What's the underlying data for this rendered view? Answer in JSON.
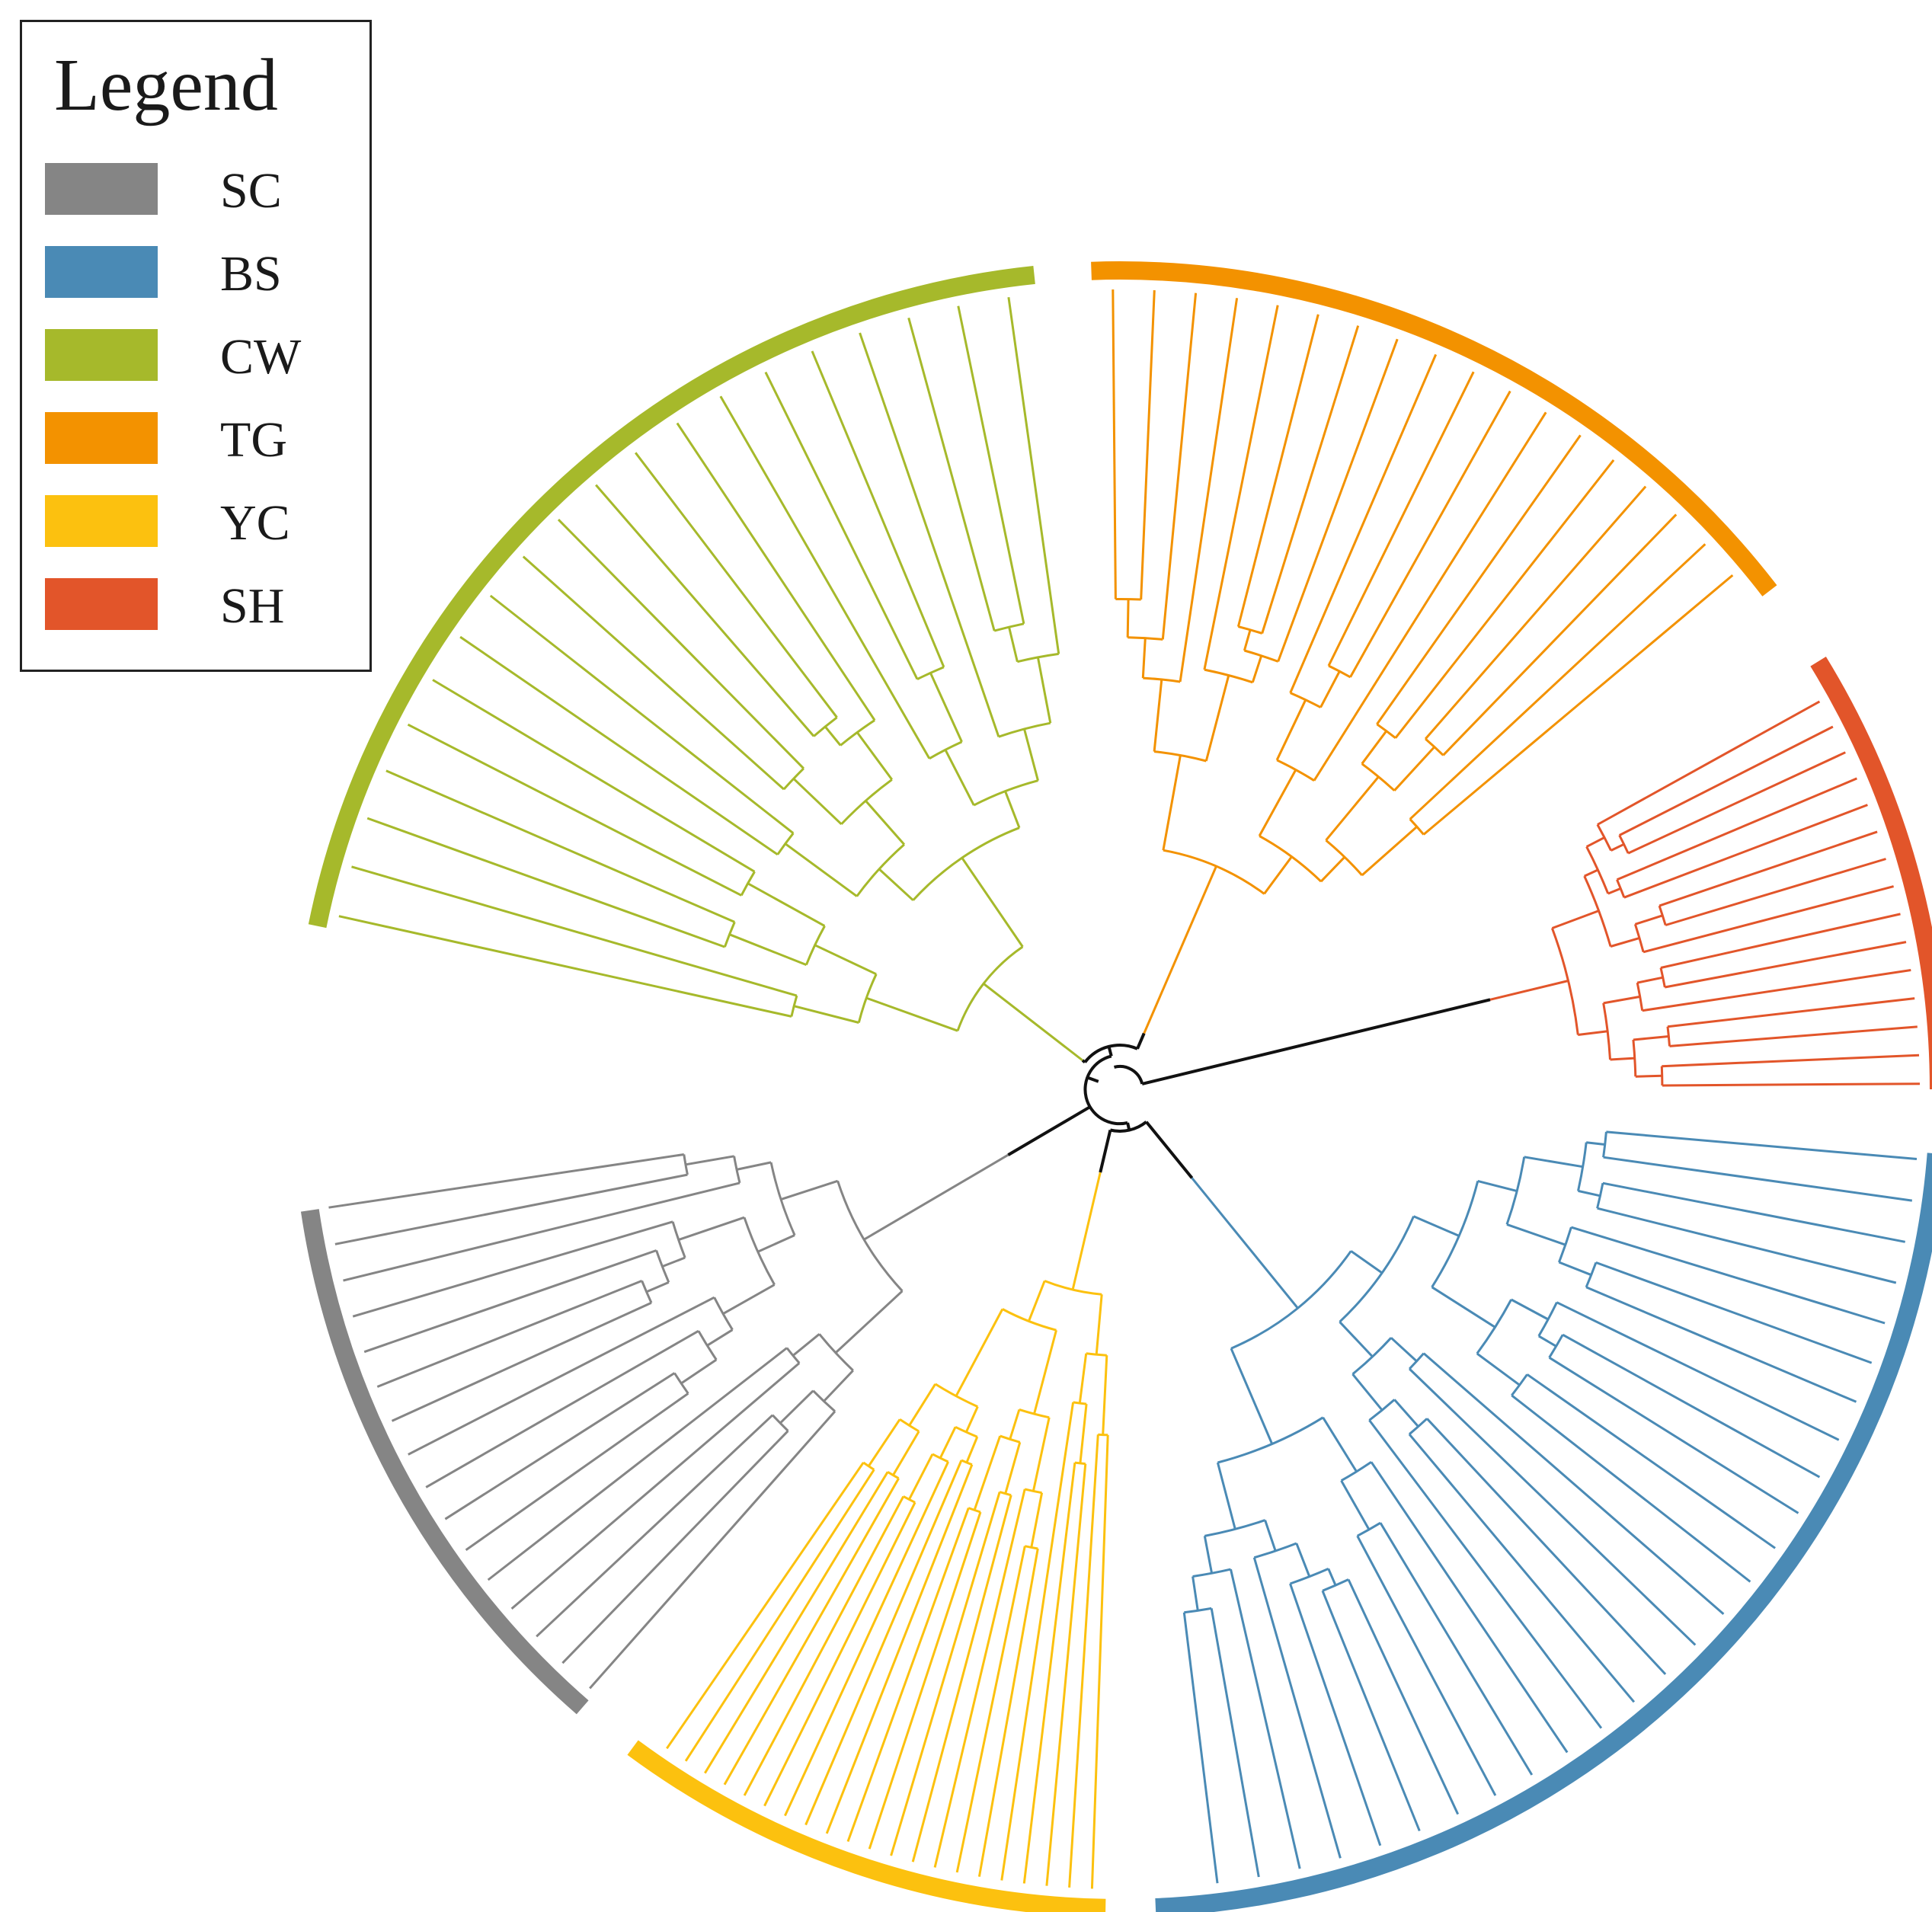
{
  "legend": {
    "title": "Legend",
    "items": [
      {
        "label": "SC",
        "color": "#858585"
      },
      {
        "label": "BS",
        "color": "#4a8ab5"
      },
      {
        "label": "CW",
        "color": "#a6b92b"
      },
      {
        "label": "TG",
        "color": "#f39200"
      },
      {
        "label": "YC",
        "color": "#fcc10f"
      },
      {
        "label": "SH",
        "color": "#e2552a"
      }
    ]
  },
  "tree": {
    "layout": "circular dendrogram",
    "root_color": "#111111",
    "groups": [
      {
        "name": "SC",
        "color": "#858585",
        "leaves": 16
      },
      {
        "name": "CW",
        "color": "#a6b92b",
        "leaves": 20
      },
      {
        "name": "TG",
        "color": "#f39200",
        "leaves": 18
      },
      {
        "name": "SH",
        "color": "#e2552a",
        "leaves": 15
      },
      {
        "name": "BS",
        "color": "#4a8ab5",
        "leaves": 27
      },
      {
        "name": "YC",
        "color": "#fcc10f",
        "leaves": 21
      }
    ]
  }
}
